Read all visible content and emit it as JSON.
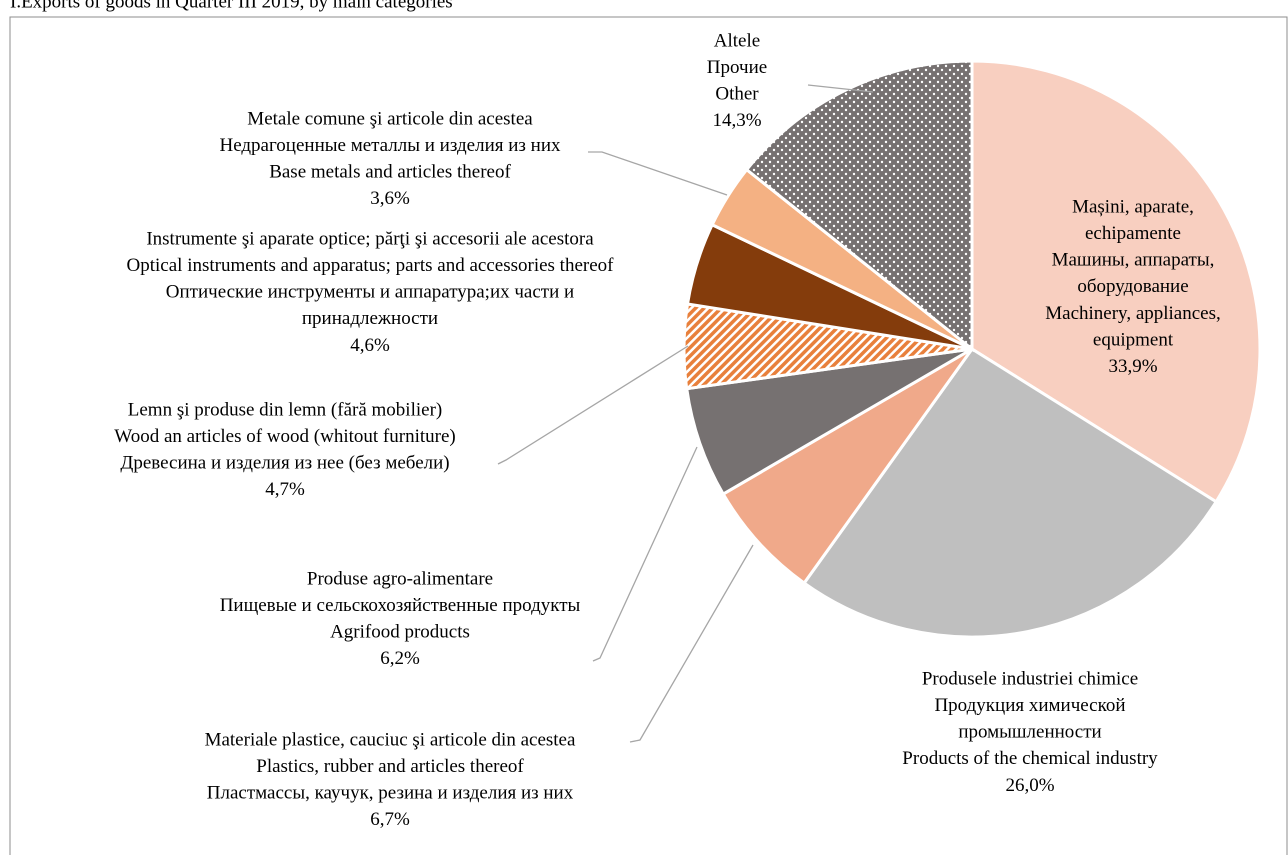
{
  "chart_data": {
    "type": "pie",
    "title": "I.Exports of goods in Quarter III 2019, by main categories",
    "categories": [
      [
        "Mașini, aparate,",
        "echipamente",
        "Машины, аппараты,",
        "оборудование",
        "Machinery, appliances,",
        "equipment"
      ],
      [
        "Produsele industriei chimice",
        "Продукция химической",
        "промышленности",
        "Products of the chemical industry"
      ],
      [
        "Materiale plastice, cauciuc şi articole din acestea",
        "Plastics, rubber and articles thereof",
        "Пластмассы, каучук, резина и изделия из них"
      ],
      [
        "Produse agro-alimentare",
        "Пищевые и сельскохозяйственные продукты",
        "Agrifood products"
      ],
      [
        "Lemn şi produse din lemn (fără mobilier)",
        "Wood an articles of wood (whitout furniture)",
        "Древесина и изделия из нее (без мебели)"
      ],
      [
        "Instrumente şi aparate optice;  părţi şi accesorii ale acestora",
        "Optical instruments and apparatus;  parts and accessories thereof",
        "Оптические инструменты и аппаратура;их части и",
        "принадлежности"
      ],
      [
        "Metale comune şi articole din acestea",
        "Недрагоценные металлы и изделия из них",
        "Base metals and articles thereof"
      ],
      [
        "Altele",
        "Прочие",
        "Other"
      ]
    ],
    "values": [
      33.9,
      26.0,
      6.7,
      6.2,
      4.7,
      4.6,
      3.6,
      14.3
    ],
    "value_labels": [
      "33,9%",
      "26,0%",
      "6,7%",
      "6,2%",
      "4,7%",
      "4,6%",
      "3,6%",
      "14,3%"
    ],
    "colors": [
      "#f8cfc0",
      "#bfbfbf",
      "#f0a98a",
      "#767171",
      "#e8803c",
      "#843c0c",
      "#f4b183",
      "#767171"
    ],
    "patterns": [
      null,
      null,
      null,
      null,
      "hatch",
      null,
      null,
      "dots"
    ]
  }
}
